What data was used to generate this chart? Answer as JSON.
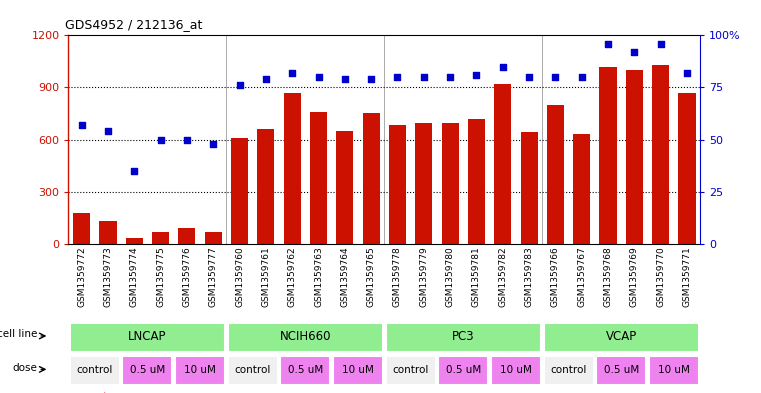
{
  "title": "GDS4952 / 212136_at",
  "samples": [
    "GSM1359772",
    "GSM1359773",
    "GSM1359774",
    "GSM1359775",
    "GSM1359776",
    "GSM1359777",
    "GSM1359760",
    "GSM1359761",
    "GSM1359762",
    "GSM1359763",
    "GSM1359764",
    "GSM1359765",
    "GSM1359778",
    "GSM1359779",
    "GSM1359780",
    "GSM1359781",
    "GSM1359782",
    "GSM1359783",
    "GSM1359766",
    "GSM1359767",
    "GSM1359768",
    "GSM1359769",
    "GSM1359770",
    "GSM1359771"
  ],
  "counts": [
    175,
    130,
    30,
    70,
    90,
    65,
    610,
    660,
    870,
    760,
    650,
    755,
    685,
    695,
    695,
    720,
    920,
    645,
    800,
    630,
    1020,
    1000,
    1030,
    870
  ],
  "percentile_ranks": [
    57,
    54,
    35,
    50,
    50,
    48,
    76,
    79,
    82,
    80,
    79,
    79,
    80,
    80,
    80,
    81,
    85,
    80,
    80,
    80,
    96,
    92,
    96,
    82
  ],
  "cell_line_data": [
    {
      "label": "LNCAP",
      "start": 0,
      "end": 6
    },
    {
      "label": "NCIH660",
      "start": 6,
      "end": 12
    },
    {
      "label": "PC3",
      "start": 12,
      "end": 18
    },
    {
      "label": "VCAP",
      "start": 18,
      "end": 24
    }
  ],
  "dose_data": [
    {
      "label": "control",
      "start": 0,
      "end": 2,
      "color": "#f0f0f0"
    },
    {
      "label": "0.5 uM",
      "start": 2,
      "end": 4,
      "color": "#ee82ee"
    },
    {
      "label": "10 uM",
      "start": 4,
      "end": 6,
      "color": "#ee82ee"
    },
    {
      "label": "control",
      "start": 6,
      "end": 8,
      "color": "#f0f0f0"
    },
    {
      "label": "0.5 uM",
      "start": 8,
      "end": 10,
      "color": "#ee82ee"
    },
    {
      "label": "10 uM",
      "start": 10,
      "end": 12,
      "color": "#ee82ee"
    },
    {
      "label": "control",
      "start": 12,
      "end": 14,
      "color": "#f0f0f0"
    },
    {
      "label": "0.5 uM",
      "start": 14,
      "end": 16,
      "color": "#ee82ee"
    },
    {
      "label": "10 uM",
      "start": 16,
      "end": 18,
      "color": "#ee82ee"
    },
    {
      "label": "control",
      "start": 18,
      "end": 20,
      "color": "#f0f0f0"
    },
    {
      "label": "0.5 uM",
      "start": 20,
      "end": 22,
      "color": "#ee82ee"
    },
    {
      "label": "10 uM",
      "start": 22,
      "end": 24,
      "color": "#ee82ee"
    }
  ],
  "bar_color": "#cc1100",
  "dot_color": "#0000cc",
  "ylim_left": [
    0,
    1200
  ],
  "ylim_right": [
    0,
    100
  ],
  "yticks_left": [
    0,
    300,
    600,
    900,
    1200
  ],
  "yticks_right": [
    0,
    25,
    50,
    75,
    100
  ],
  "cell_line_color": "#90ee90",
  "bg_color": "#ffffff",
  "legend_count_color": "#cc1100",
  "legend_dot_color": "#0000cc"
}
